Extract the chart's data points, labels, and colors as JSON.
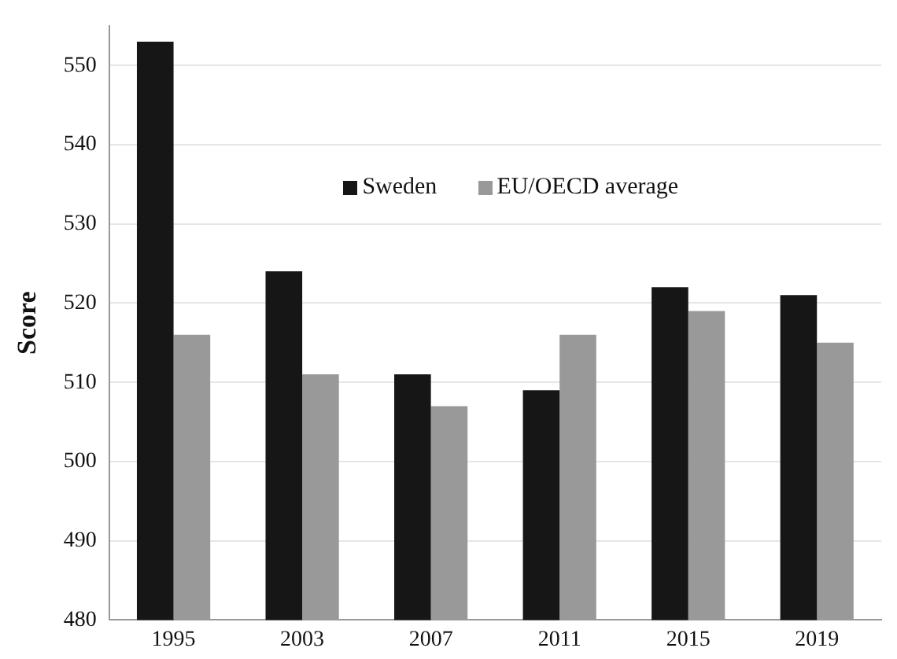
{
  "chart_data": {
    "type": "bar",
    "ylabel": "Score",
    "categories": [
      "1995",
      "2003",
      "2007",
      "2011",
      "2015",
      "2019"
    ],
    "series": [
      {
        "name": "Sweden",
        "color": "#161616",
        "values": [
          553,
          524,
          511,
          509,
          522,
          521
        ]
      },
      {
        "name": "EU/OECD average",
        "color": "#999999",
        "values": [
          516,
          511,
          507,
          516,
          519,
          515
        ]
      }
    ],
    "ylim": [
      480,
      555
    ],
    "yticks": [
      480,
      490,
      500,
      510,
      520,
      530,
      540,
      550
    ],
    "grid": "y",
    "legend": "top"
  }
}
